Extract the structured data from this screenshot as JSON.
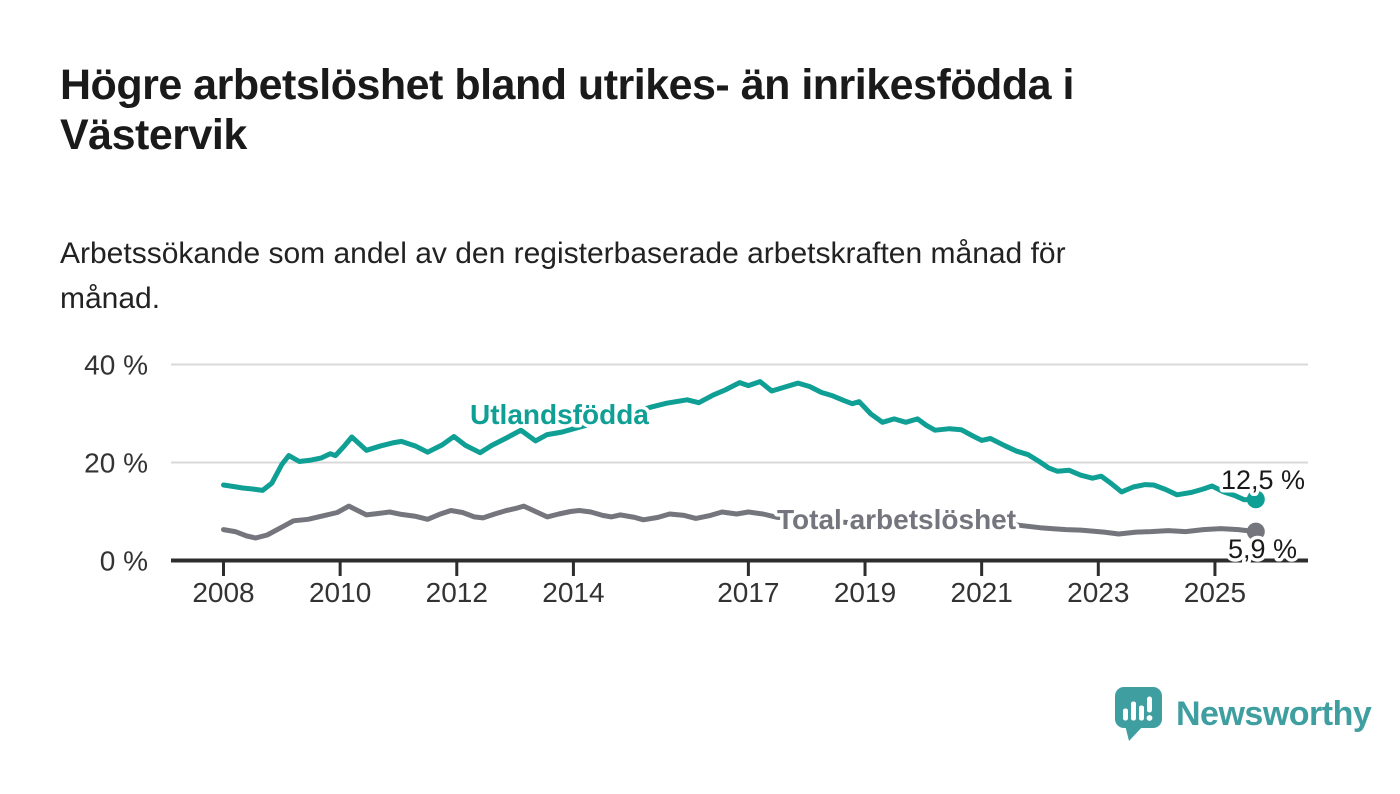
{
  "header": {
    "title_line1": "Högre arbetslöshet bland utrikes- än inrikesfödda i",
    "title_line2": "Västervik",
    "subtitle_line1": "Arbetssökande som andel av den registerbaserade arbetskraften månad för",
    "subtitle_line2": "månad."
  },
  "footer": {
    "brand": "Newsworthy",
    "logo_icon": "speech-bubble-bar-chart-icon"
  },
  "colors": {
    "teal": "#0f9f95",
    "gray": "#75757d",
    "axis": "#2d2d2d",
    "grid": "#d9d9d9",
    "tick_text": "#333333",
    "title_text": "#1a1a1a",
    "logo_teal": "#3f9e9f",
    "background": "#ffffff"
  },
  "chart_data": {
    "type": "line",
    "title": "Högre arbetslöshet bland utrikes- än inrikesfödda i Västervik",
    "subtitle": "Arbetssökande som andel av den registerbaserade arbetskraften månad för månad.",
    "xlabel": "",
    "ylabel": "",
    "unit": "%",
    "grid": "horizontal-only",
    "legend": "inline-series-labels",
    "x_axis": {
      "min": 2008,
      "max": 2025.9,
      "ticks": [
        {
          "v": 2008,
          "label": "2008"
        },
        {
          "v": 2010,
          "label": "2010"
        },
        {
          "v": 2012,
          "label": "2012"
        },
        {
          "v": 2014,
          "label": "2014"
        },
        {
          "v": 2017,
          "label": "2017"
        },
        {
          "v": 2019,
          "label": "2019"
        },
        {
          "v": 2021,
          "label": "2021"
        },
        {
          "v": 2023,
          "label": "2023"
        },
        {
          "v": 2025,
          "label": "2025"
        }
      ]
    },
    "y_axis": {
      "min": 0,
      "max": 40,
      "ticks": [
        {
          "v": 40,
          "label": "40 %"
        },
        {
          "v": 20,
          "label": "20 %"
        },
        {
          "v": 0,
          "label": "0 %"
        }
      ]
    },
    "series": [
      {
        "name": "Utlandsfödda",
        "color": "#0f9f95",
        "end_value": 12.5,
        "end_label": "12,5 %",
        "points": [
          [
            2008.0,
            15.4
          ],
          [
            2008.17,
            15.1
          ],
          [
            2008.33,
            14.8
          ],
          [
            2008.5,
            14.6
          ],
          [
            2008.67,
            14.3
          ],
          [
            2008.83,
            15.8
          ],
          [
            2009.0,
            19.6
          ],
          [
            2009.12,
            21.4
          ],
          [
            2009.3,
            20.2
          ],
          [
            2009.5,
            20.5
          ],
          [
            2009.67,
            20.9
          ],
          [
            2009.83,
            21.8
          ],
          [
            2009.92,
            21.4
          ],
          [
            2010.08,
            23.5
          ],
          [
            2010.2,
            25.2
          ],
          [
            2010.45,
            22.5
          ],
          [
            2010.7,
            23.4
          ],
          [
            2010.9,
            24.0
          ],
          [
            2011.05,
            24.3
          ],
          [
            2011.3,
            23.3
          ],
          [
            2011.5,
            22.1
          ],
          [
            2011.75,
            23.6
          ],
          [
            2011.95,
            25.3
          ],
          [
            2012.15,
            23.5
          ],
          [
            2012.4,
            22.0
          ],
          [
            2012.6,
            23.5
          ],
          [
            2012.85,
            25.0
          ],
          [
            2013.1,
            26.6
          ],
          [
            2013.35,
            24.4
          ],
          [
            2013.55,
            25.7
          ],
          [
            2013.8,
            26.2
          ],
          [
            2014.1,
            27.2
          ],
          [
            2014.4,
            28.2
          ],
          [
            2014.7,
            29.2
          ],
          [
            2015.0,
            30.2
          ],
          [
            2015.3,
            31.2
          ],
          [
            2015.6,
            32.1
          ],
          [
            2015.95,
            32.8
          ],
          [
            2016.15,
            32.2
          ],
          [
            2016.4,
            33.8
          ],
          [
            2016.6,
            34.8
          ],
          [
            2016.85,
            36.3
          ],
          [
            2017.0,
            35.7
          ],
          [
            2017.2,
            36.5
          ],
          [
            2017.4,
            34.6
          ],
          [
            2017.6,
            35.3
          ],
          [
            2017.85,
            36.2
          ],
          [
            2018.05,
            35.5
          ],
          [
            2018.25,
            34.3
          ],
          [
            2018.45,
            33.6
          ],
          [
            2018.65,
            32.6
          ],
          [
            2018.78,
            32.0
          ],
          [
            2018.9,
            32.4
          ],
          [
            2019.1,
            29.9
          ],
          [
            2019.3,
            28.2
          ],
          [
            2019.5,
            28.9
          ],
          [
            2019.7,
            28.2
          ],
          [
            2019.9,
            28.9
          ],
          [
            2020.05,
            27.6
          ],
          [
            2020.2,
            26.6
          ],
          [
            2020.45,
            26.9
          ],
          [
            2020.65,
            26.7
          ],
          [
            2020.85,
            25.4
          ],
          [
            2021.0,
            24.5
          ],
          [
            2021.15,
            24.9
          ],
          [
            2021.4,
            23.4
          ],
          [
            2021.6,
            22.3
          ],
          [
            2021.8,
            21.6
          ],
          [
            2022.0,
            20.1
          ],
          [
            2022.15,
            18.9
          ],
          [
            2022.3,
            18.2
          ],
          [
            2022.5,
            18.4
          ],
          [
            2022.7,
            17.4
          ],
          [
            2022.9,
            16.8
          ],
          [
            2023.05,
            17.2
          ],
          [
            2023.2,
            15.9
          ],
          [
            2023.4,
            14.0
          ],
          [
            2023.6,
            15.0
          ],
          [
            2023.8,
            15.5
          ],
          [
            2023.95,
            15.4
          ],
          [
            2024.15,
            14.5
          ],
          [
            2024.35,
            13.4
          ],
          [
            2024.6,
            13.9
          ],
          [
            2024.8,
            14.6
          ],
          [
            2024.95,
            15.2
          ],
          [
            2025.15,
            14.0
          ],
          [
            2025.35,
            13.2
          ],
          [
            2025.5,
            12.4
          ],
          [
            2025.7,
            12.5
          ]
        ]
      },
      {
        "name": "Total arbetslöshet",
        "color": "#75757d",
        "end_value": 5.9,
        "end_label": "5,9 %",
        "points": [
          [
            2008.0,
            6.3
          ],
          [
            2008.2,
            5.9
          ],
          [
            2008.4,
            5.0
          ],
          [
            2008.55,
            4.6
          ],
          [
            2008.75,
            5.2
          ],
          [
            2009.0,
            6.8
          ],
          [
            2009.2,
            8.1
          ],
          [
            2009.45,
            8.4
          ],
          [
            2009.7,
            9.1
          ],
          [
            2009.95,
            9.8
          ],
          [
            2010.15,
            11.1
          ],
          [
            2010.45,
            9.3
          ],
          [
            2010.65,
            9.6
          ],
          [
            2010.85,
            9.9
          ],
          [
            2011.05,
            9.4
          ],
          [
            2011.3,
            9.0
          ],
          [
            2011.5,
            8.4
          ],
          [
            2011.7,
            9.4
          ],
          [
            2011.9,
            10.2
          ],
          [
            2012.1,
            9.8
          ],
          [
            2012.3,
            8.9
          ],
          [
            2012.45,
            8.7
          ],
          [
            2012.65,
            9.5
          ],
          [
            2012.85,
            10.2
          ],
          [
            2013.0,
            10.6
          ],
          [
            2013.15,
            11.1
          ],
          [
            2013.35,
            10.0
          ],
          [
            2013.55,
            8.9
          ],
          [
            2013.75,
            9.5
          ],
          [
            2013.95,
            10.0
          ],
          [
            2014.1,
            10.2
          ],
          [
            2014.3,
            9.9
          ],
          [
            2014.5,
            9.2
          ],
          [
            2014.65,
            8.9
          ],
          [
            2014.8,
            9.3
          ],
          [
            2015.05,
            8.8
          ],
          [
            2015.2,
            8.3
          ],
          [
            2015.45,
            8.8
          ],
          [
            2015.65,
            9.5
          ],
          [
            2015.9,
            9.2
          ],
          [
            2016.1,
            8.6
          ],
          [
            2016.35,
            9.2
          ],
          [
            2016.55,
            9.9
          ],
          [
            2016.8,
            9.5
          ],
          [
            2017.0,
            9.9
          ],
          [
            2017.25,
            9.5
          ],
          [
            2017.5,
            8.8
          ],
          [
            2017.8,
            8.5
          ],
          [
            2018.1,
            8.2
          ],
          [
            2018.5,
            7.9
          ],
          [
            2018.9,
            7.6
          ],
          [
            2019.3,
            7.4
          ],
          [
            2019.7,
            7.5
          ],
          [
            2020.1,
            8.2
          ],
          [
            2020.5,
            8.6
          ],
          [
            2020.9,
            8.3
          ],
          [
            2021.3,
            7.7
          ],
          [
            2021.7,
            7.1
          ],
          [
            2022.0,
            6.7
          ],
          [
            2022.2,
            6.5
          ],
          [
            2022.45,
            6.3
          ],
          [
            2022.7,
            6.2
          ],
          [
            2023.1,
            5.8
          ],
          [
            2023.35,
            5.4
          ],
          [
            2023.65,
            5.8
          ],
          [
            2023.9,
            5.9
          ],
          [
            2024.2,
            6.1
          ],
          [
            2024.5,
            5.9
          ],
          [
            2024.8,
            6.3
          ],
          [
            2025.1,
            6.5
          ],
          [
            2025.4,
            6.3
          ],
          [
            2025.7,
            5.9
          ]
        ]
      }
    ]
  }
}
